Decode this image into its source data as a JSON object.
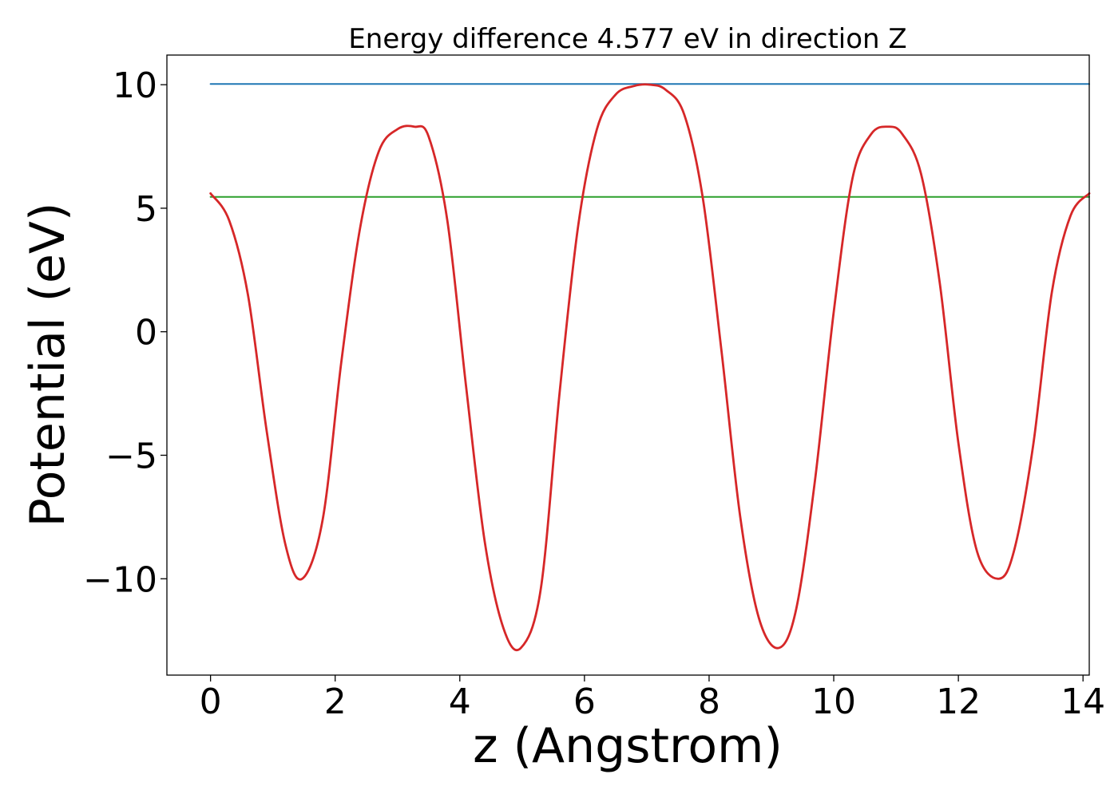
{
  "chart_data": {
    "type": "line",
    "title": "Energy difference 4.577 eV in direction Z",
    "xlabel": "z (Angstrom)",
    "ylabel": "Potential (eV)",
    "xlim": [
      -0.7,
      14.1
    ],
    "ylim": [
      -13.9,
      11.2
    ],
    "xticks": [
      0,
      2,
      4,
      6,
      8,
      10,
      12,
      14
    ],
    "xtick_labels": [
      "0",
      "2",
      "4",
      "6",
      "8",
      "10",
      "12",
      "14"
    ],
    "yticks": [
      -10,
      -5,
      0,
      5,
      10
    ],
    "ytick_labels": [
      "−10",
      "−5",
      "0",
      "5",
      "10"
    ],
    "grid": false,
    "series": [
      {
        "color": "#1f77b4",
        "x": [
          0,
          14.1
        ],
        "y": [
          10.03,
          10.03
        ]
      },
      {
        "color": "#2ca02c",
        "x": [
          0,
          14.1
        ],
        "y": [
          5.46,
          5.46
        ]
      },
      {
        "color": "#d62728",
        "x": [
          0,
          0.3,
          0.6,
          0.9,
          1.2,
          1.47,
          1.8,
          2.1,
          2.4,
          2.7,
          3.0,
          3.27,
          3.5,
          3.8,
          4.1,
          4.4,
          4.7,
          4.98,
          5.3,
          5.6,
          5.9,
          6.2,
          6.5,
          6.8,
          7.05,
          7.3,
          7.6,
          7.9,
          8.2,
          8.5,
          8.8,
          9.12,
          9.4,
          9.7,
          10.0,
          10.3,
          10.6,
          10.88,
          11.1,
          11.4,
          11.7,
          12.0,
          12.3,
          12.65,
          12.9,
          13.2,
          13.5,
          13.8,
          14.1
        ],
        "y": [
          5.6,
          4.5,
          1.5,
          -4.0,
          -8.6,
          -10.0,
          -7.6,
          -1.2,
          4.2,
          7.3,
          8.2,
          8.3,
          7.9,
          4.5,
          -2.2,
          -8.5,
          -12.0,
          -12.8,
          -10.4,
          -2.5,
          4.3,
          8.2,
          9.6,
          9.95,
          10.0,
          9.8,
          8.8,
          5.4,
          -0.8,
          -7.5,
          -11.6,
          -12.8,
          -11.2,
          -6.0,
          0.8,
          6.2,
          8.0,
          8.3,
          8.0,
          6.4,
          2.0,
          -4.5,
          -8.9,
          -10.0,
          -8.8,
          -4.6,
          1.6,
          4.7,
          5.6
        ]
      }
    ]
  }
}
